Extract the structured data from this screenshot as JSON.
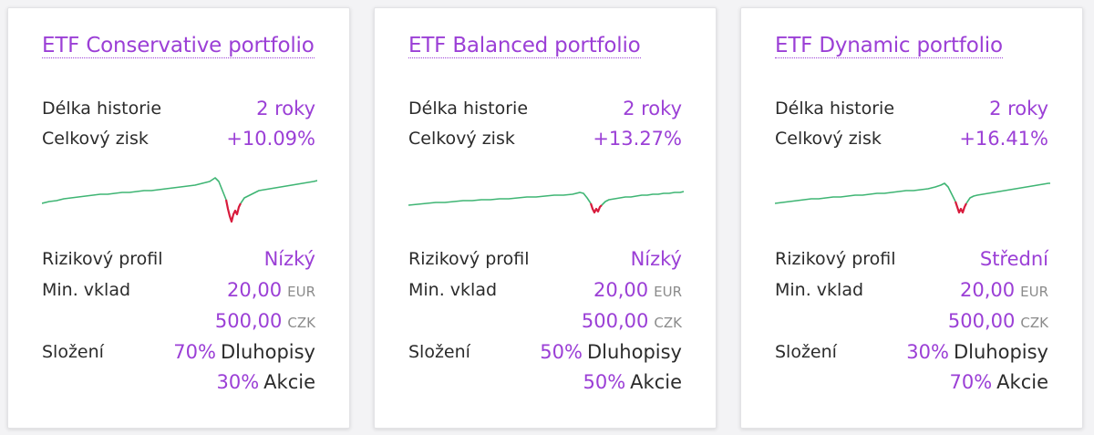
{
  "labels": {
    "history": "Délka historie",
    "total_gain": "Celkový zisk",
    "risk_profile": "Rizikový profil",
    "min_deposit": "Min. vklad",
    "composition": "Složení",
    "bonds": "Dluhopisy",
    "stocks": "Akcie"
  },
  "colors": {
    "accent": "#9b3fd6",
    "chart_up": "#3fb574",
    "chart_down": "#d81b3c"
  },
  "cards": [
    {
      "title": "ETF Conservative portfolio",
      "history": "2 roky",
      "total_gain": "+10.09%",
      "risk_profile": "Nízký",
      "min_deposit_eur": "20,00",
      "currency_eur": "EUR",
      "min_deposit_czk": "500,00",
      "currency_czk": "CZK",
      "bonds_pct": "70%",
      "stocks_pct": "30%"
    },
    {
      "title": "ETF Balanced portfolio",
      "history": "2 roky",
      "total_gain": "+13.27%",
      "risk_profile": "Nízký",
      "min_deposit_eur": "20,00",
      "currency_eur": "EUR",
      "min_deposit_czk": "500,00",
      "currency_czk": "CZK",
      "bonds_pct": "50%",
      "stocks_pct": "50%"
    },
    {
      "title": "ETF Dynamic portfolio",
      "history": "2 roky",
      "total_gain": "+16.41%",
      "risk_profile": "Střední",
      "min_deposit_eur": "20,00",
      "currency_eur": "EUR",
      "min_deposit_czk": "500,00",
      "currency_czk": "CZK",
      "bonds_pct": "30%",
      "stocks_pct": "70%"
    }
  ]
}
